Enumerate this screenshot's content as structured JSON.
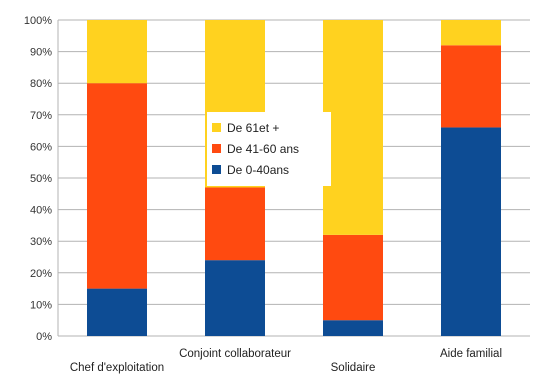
{
  "chart_data": {
    "type": "bar",
    "stacked": true,
    "normalized": true,
    "categories": [
      "Chef d'exploitation",
      "Conjoint collaborateur",
      "Solidaire",
      "Aide familial"
    ],
    "series": [
      {
        "name": "De 0-40ans",
        "color": "#0d4c94",
        "values": [
          15,
          24,
          5,
          66
        ]
      },
      {
        "name": "De 41-60 ans",
        "color": "#ff4a10",
        "values": [
          65,
          23,
          27,
          26
        ]
      },
      {
        "name": "De 61et +",
        "color": "#ffd21f",
        "values": [
          20,
          53,
          68,
          8
        ]
      }
    ],
    "ylim": [
      0,
      100
    ],
    "y_ticks": [
      "0%",
      "10%",
      "20%",
      "30%",
      "40%",
      "50%",
      "60%",
      "70%",
      "80%",
      "90%",
      "100%"
    ],
    "grid": true,
    "legend": {
      "placement": "center",
      "order": [
        "De 61et +",
        "De 41-60 ans",
        "De 0-40ans"
      ]
    }
  }
}
